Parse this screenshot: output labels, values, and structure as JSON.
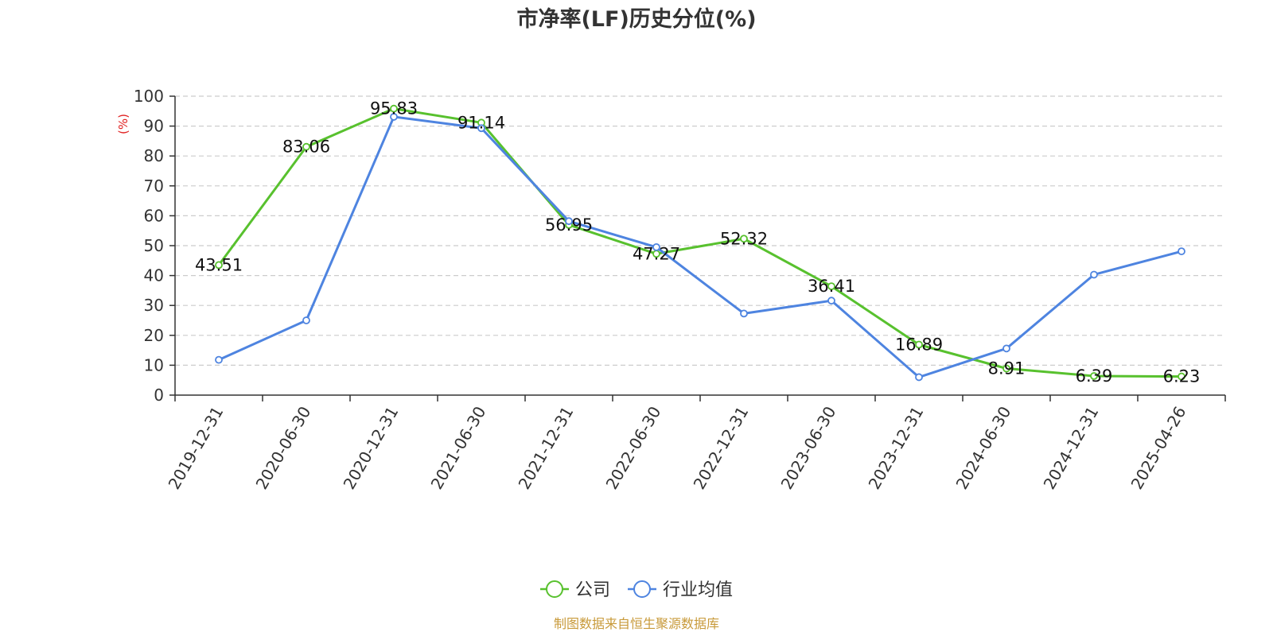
{
  "chart_data": {
    "type": "line",
    "title": "市净率(LF)历史分位(%)",
    "ylabel": "(%)",
    "ylim": [
      0,
      100
    ],
    "yticks": [
      0,
      10,
      20,
      30,
      40,
      50,
      60,
      70,
      80,
      90,
      100
    ],
    "grid": true,
    "legend_placement": "bottom-center",
    "categories": [
      "2019-12-31",
      "2020-06-30",
      "2020-12-31",
      "2021-06-30",
      "2021-12-31",
      "2022-06-30",
      "2022-12-31",
      "2023-06-30",
      "2023-12-31",
      "2024-06-30",
      "2024-12-31",
      "2025-04-26"
    ],
    "series": [
      {
        "name": "公司",
        "color": "#58c12e",
        "values": [
          43.51,
          83.06,
          95.83,
          91.14,
          56.95,
          47.27,
          52.32,
          36.41,
          16.89,
          8.91,
          6.39,
          6.23
        ],
        "labels": [
          "43.51",
          "83.06",
          "95.83",
          "91.14",
          "56.95",
          "47.27",
          "52.32",
          "36.41",
          "16.89",
          "8.91",
          "6.39",
          "6.23"
        ]
      },
      {
        "name": "行业均值",
        "color": "#4e84e0",
        "values": [
          11.8,
          25.0,
          93.1,
          89.3,
          58.2,
          49.5,
          27.3,
          31.6,
          6.0,
          15.6,
          40.3,
          48.1
        ]
      }
    ]
  },
  "unit_color": "#e02020",
  "source": {
    "text": "制图数据来自恒生聚源数据库",
    "color": "#c89a3a"
  }
}
